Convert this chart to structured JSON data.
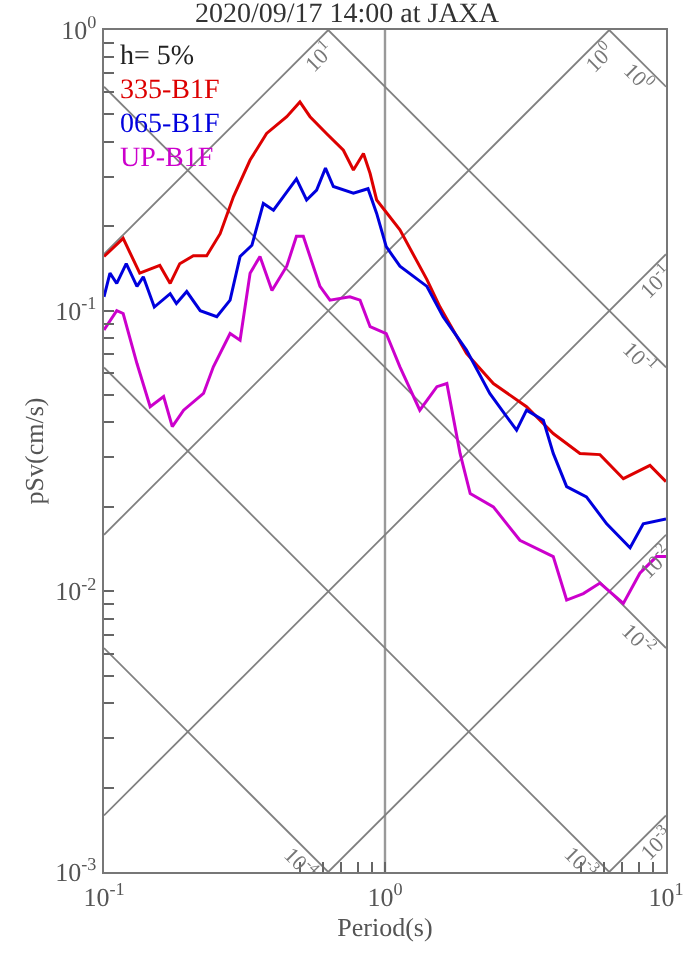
{
  "chart_data": {
    "type": "line",
    "title": "2020/09/17 14:00 at JAXA",
    "xlabel": "Period(s)",
    "ylabel": "pSv(cm/s)",
    "log": "xy",
    "grid": true,
    "legend": "top left",
    "marker": "none",
    "line_style": "solid",
    "annotations": [
      "h= 5%",
      {
        "text": "10$^{1}$",
        "x": 0.628,
        "y": 1
      },
      {
        "text": "10$^{0}$",
        "x": 6.28,
        "y": 1
      },
      {
        "text": "10$^{-1}$",
        "x": 10,
        "y": 0.159
      },
      {
        "text": "10$^{-2}$",
        "x": 10,
        "y": 0.0159
      },
      {
        "text": "10$^{-3}$",
        "x": 10,
        "y": 0.00159
      },
      {
        "text": "10$^{0}$",
        "x": 10,
        "y": 0.628
      },
      {
        "text": "10$^{-1}$",
        "x": 10,
        "y": 0.0628
      },
      {
        "text": "10$^{-2}$",
        "x": 10,
        "y": 0.00628
      },
      {
        "text": "10$^{-3}$",
        "x": 6.28,
        "y": 0.001
      },
      {
        "text": "10$^{-4}$",
        "x": 0.628,
        "y": 0.001
      }
    ],
    "xlim": [
      0.1,
      10
    ],
    "ylim": [
      0.001,
      1
    ],
    "xticks": [
      {
        "value": 0.1,
        "label": "10$^{-1}$"
      },
      {
        "value": 0.5,
        "label": null
      },
      {
        "value": 0.6,
        "label": null
      },
      {
        "value": 0.7,
        "label": null
      },
      {
        "value": 0.8,
        "label": null
      },
      {
        "value": 0.9,
        "label": null
      },
      {
        "value": 1,
        "label": "10$^{0}$"
      },
      {
        "value": 5,
        "label": null
      },
      {
        "value": 6,
        "label": null
      },
      {
        "value": 7,
        "label": null
      },
      {
        "value": 8,
        "label": null
      },
      {
        "value": 9,
        "label": null
      },
      {
        "value": 10,
        "label": "10$^{1}$"
      }
    ],
    "yticks": [
      {
        "value": 0.001,
        "label": "10$^{-3}$"
      },
      {
        "value": 0.002,
        "label": null
      },
      {
        "value": 0.003,
        "label": null
      },
      {
        "value": 0.004,
        "label": null
      },
      {
        "value": 0.005,
        "label": null
      },
      {
        "value": 0.006,
        "label": null
      },
      {
        "value": 0.007,
        "label": null
      },
      {
        "value": 0.008,
        "label": null
      },
      {
        "value": 0.009,
        "label": null
      },
      {
        "value": 0.01,
        "label": "10$^{-2}$"
      },
      {
        "value": 0.02,
        "label": null
      },
      {
        "value": 0.03,
        "label": null
      },
      {
        "value": 0.04,
        "label": null
      },
      {
        "value": 0.05,
        "label": null
      },
      {
        "value": 0.06,
        "label": null
      },
      {
        "value": 0.07,
        "label": null
      },
      {
        "value": 0.08,
        "label": null
      },
      {
        "value": 0.09,
        "label": null
      },
      {
        "value": 0.1,
        "label": "10$^{-1}$"
      },
      {
        "value": 0.2,
        "label": null
      },
      {
        "value": 0.3,
        "label": null
      },
      {
        "value": 0.4,
        "label": null
      },
      {
        "value": 0.5,
        "label": null
      },
      {
        "value": 0.6,
        "label": null
      },
      {
        "value": 0.7,
        "label": null
      },
      {
        "value": 0.8,
        "label": null
      },
      {
        "value": 0.9,
        "label": null
      },
      {
        "value": 1,
        "label": "10$^{0}$"
      }
    ],
    "series": [
      {
        "type": "line",
        "color": "#808080",
        "x": [
          0.1,
          0.628
        ],
        "values": [
          0.159,
          1
        ]
      },
      {
        "type": "line",
        "color": "#808080",
        "x": [
          0.1,
          6.28
        ],
        "values": [
          0.0159,
          1
        ]
      },
      {
        "type": "line",
        "color": "#808080",
        "x": [
          0.1,
          10
        ],
        "values": [
          0.00159,
          0.159
        ]
      },
      {
        "type": "line",
        "color": "#808080",
        "x": [
          0.628,
          10
        ],
        "values": [
          0.001,
          0.0159
        ]
      },
      {
        "type": "line",
        "color": "#808080",
        "x": [
          6.28,
          10
        ],
        "values": [
          0.001,
          0.00159
        ]
      },
      {
        "type": "line",
        "color": "#808080",
        "x": [
          6.28,
          10
        ],
        "values": [
          1,
          0.628
        ]
      },
      {
        "type": "line",
        "color": "#808080",
        "x": [
          0.628,
          10
        ],
        "values": [
          1,
          0.0628
        ]
      },
      {
        "type": "line",
        "color": "#808080",
        "x": [
          0.1,
          10
        ],
        "values": [
          0.628,
          0.00628
        ]
      },
      {
        "type": "line",
        "color": "#808080",
        "x": [
          0.1,
          6.28
        ],
        "values": [
          0.0628,
          0.001
        ]
      },
      {
        "type": "line",
        "color": "#808080",
        "x": [
          0.1,
          0.628
        ],
        "values": [
          0.00628,
          0.001
        ]
      },
      {
        "name": "335-B1F",
        "color": "#dd0000",
        "x": [
          0.1,
          0.117,
          0.134,
          0.158,
          0.172,
          0.186,
          0.208,
          0.232,
          0.259,
          0.289,
          0.331,
          0.379,
          0.447,
          0.498,
          0.541,
          0.619,
          0.711,
          0.772,
          0.838,
          0.885,
          0.934,
          1.13,
          1.41,
          1.57,
          1.95,
          2.43,
          3.19,
          3.97,
          4.94,
          5.82,
          7.05,
          8.77,
          10
        ],
        "values": [
          0.156,
          0.181,
          0.136,
          0.145,
          0.125,
          0.147,
          0.157,
          0.157,
          0.188,
          0.255,
          0.344,
          0.428,
          0.491,
          0.554,
          0.491,
          0.428,
          0.373,
          0.317,
          0.363,
          0.308,
          0.248,
          0.194,
          0.129,
          0.103,
          0.0704,
          0.055,
          0.0455,
          0.0365,
          0.031,
          0.0307,
          0.0252,
          0.0281,
          0.0246
        ]
      },
      {
        "name": "065-B1F",
        "color": "#0000dd",
        "x": [
          0.1,
          0.105,
          0.111,
          0.12,
          0.131,
          0.138,
          0.151,
          0.172,
          0.181,
          0.197,
          0.22,
          0.252,
          0.281,
          0.305,
          0.336,
          0.369,
          0.401,
          0.435,
          0.484,
          0.526,
          0.571,
          0.614,
          0.655,
          0.772,
          0.87,
          0.934,
          1.01,
          1.13,
          1.41,
          1.61,
          1.95,
          2.36,
          2.94,
          3.19,
          3.66,
          3.97,
          4.43,
          5.21,
          6.15,
          7.45,
          8.3,
          10
        ],
        "values": [
          0.112,
          0.136,
          0.125,
          0.147,
          0.122,
          0.132,
          0.103,
          0.115,
          0.106,
          0.117,
          0.1,
          0.0952,
          0.109,
          0.156,
          0.171,
          0.241,
          0.228,
          0.255,
          0.295,
          0.248,
          0.269,
          0.322,
          0.277,
          0.262,
          0.272,
          0.222,
          0.169,
          0.144,
          0.122,
          0.0952,
          0.0724,
          0.0507,
          0.0375,
          0.0442,
          0.0407,
          0.031,
          0.0236,
          0.0217,
          0.0174,
          0.0143,
          0.0174,
          0.0181
        ]
      },
      {
        "name": "UP-B1F",
        "color": "#cc00cc",
        "x": [
          0.1,
          0.111,
          0.117,
          0.131,
          0.146,
          0.163,
          0.175,
          0.192,
          0.226,
          0.245,
          0.281,
          0.305,
          0.331,
          0.359,
          0.396,
          0.447,
          0.484,
          0.512,
          0.587,
          0.637,
          0.75,
          0.815,
          0.885,
          1.01,
          1.13,
          1.33,
          1.53,
          1.66,
          1.85,
          2.01,
          2.43,
          3.02,
          3.97,
          4.43,
          5.08,
          5.82,
          7.05,
          8.07,
          9.25,
          10
        ],
        "values": [
          0.0853,
          0.1,
          0.0977,
          0.0648,
          0.0455,
          0.0494,
          0.0386,
          0.0442,
          0.0507,
          0.0631,
          0.0829,
          0.0785,
          0.136,
          0.156,
          0.118,
          0.144,
          0.184,
          0.184,
          0.122,
          0.109,
          0.112,
          0.109,
          0.0877,
          0.0829,
          0.0631,
          0.0442,
          0.0536,
          0.055,
          0.031,
          0.0223,
          0.02,
          0.0152,
          0.0133,
          0.00931,
          0.00982,
          0.0107,
          0.00905,
          0.0116,
          0.0133,
          0.0133
        ]
      }
    ]
  }
}
